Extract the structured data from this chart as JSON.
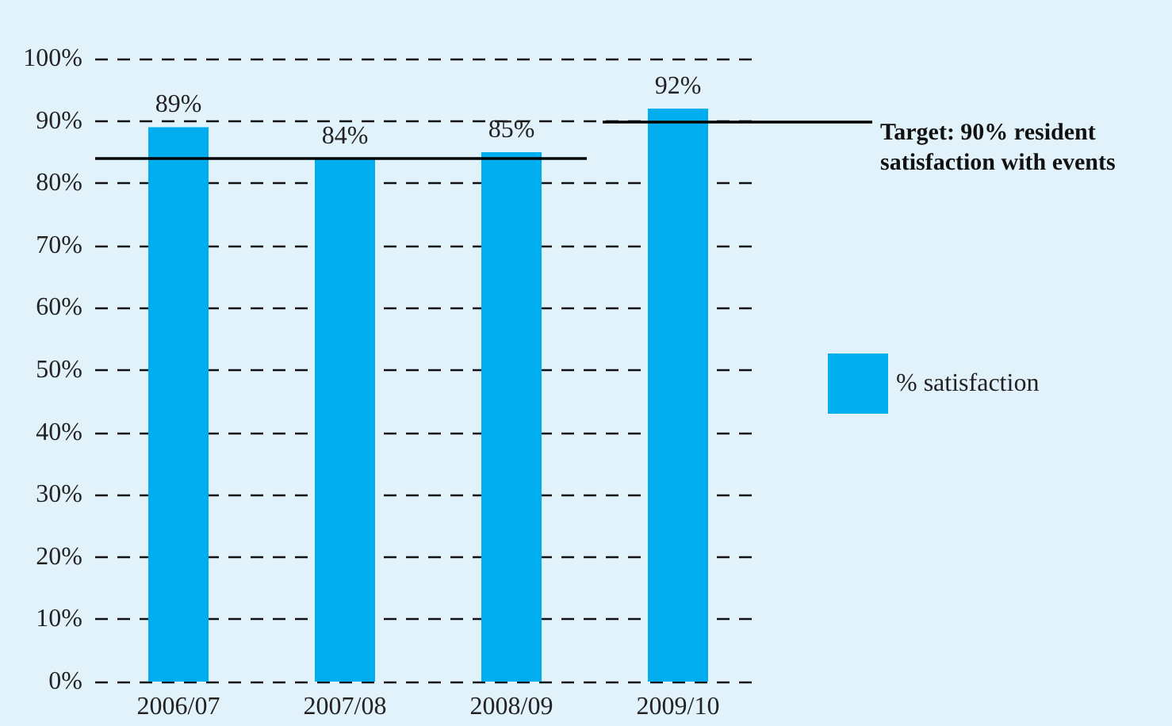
{
  "chart_data": {
    "type": "bar",
    "categories": [
      "2006/07",
      "2007/08",
      "2008/09",
      "2009/10"
    ],
    "series": [
      {
        "name": "% satisfaction",
        "color": "#00aeef",
        "values": [
          89,
          84,
          85,
          92
        ],
        "value_labels": [
          "89%",
          "84%",
          "85%",
          "92%"
        ]
      }
    ],
    "ylim": [
      0,
      100
    ],
    "yticks": [
      {
        "value": 0,
        "label": "0%"
      },
      {
        "value": 10,
        "label": "10%"
      },
      {
        "value": 20,
        "label": "20%"
      },
      {
        "value": 30,
        "label": "30%"
      },
      {
        "value": 40,
        "label": "40%"
      },
      {
        "value": 50,
        "label": "50%"
      },
      {
        "value": 60,
        "label": "60%"
      },
      {
        "value": 70,
        "label": "70%"
      },
      {
        "value": 80,
        "label": "80%"
      },
      {
        "value": 90,
        "label": "90%"
      },
      {
        "value": 100,
        "label": "100%"
      }
    ],
    "ref_lines": [
      {
        "axis": "y",
        "value": 84,
        "label": null,
        "color": "#000000"
      },
      {
        "axis": "y",
        "value": 90,
        "label": "Target: 90% resident satisfaction with events",
        "color": "#000000"
      }
    ],
    "grid": "y",
    "legend": "right"
  }
}
